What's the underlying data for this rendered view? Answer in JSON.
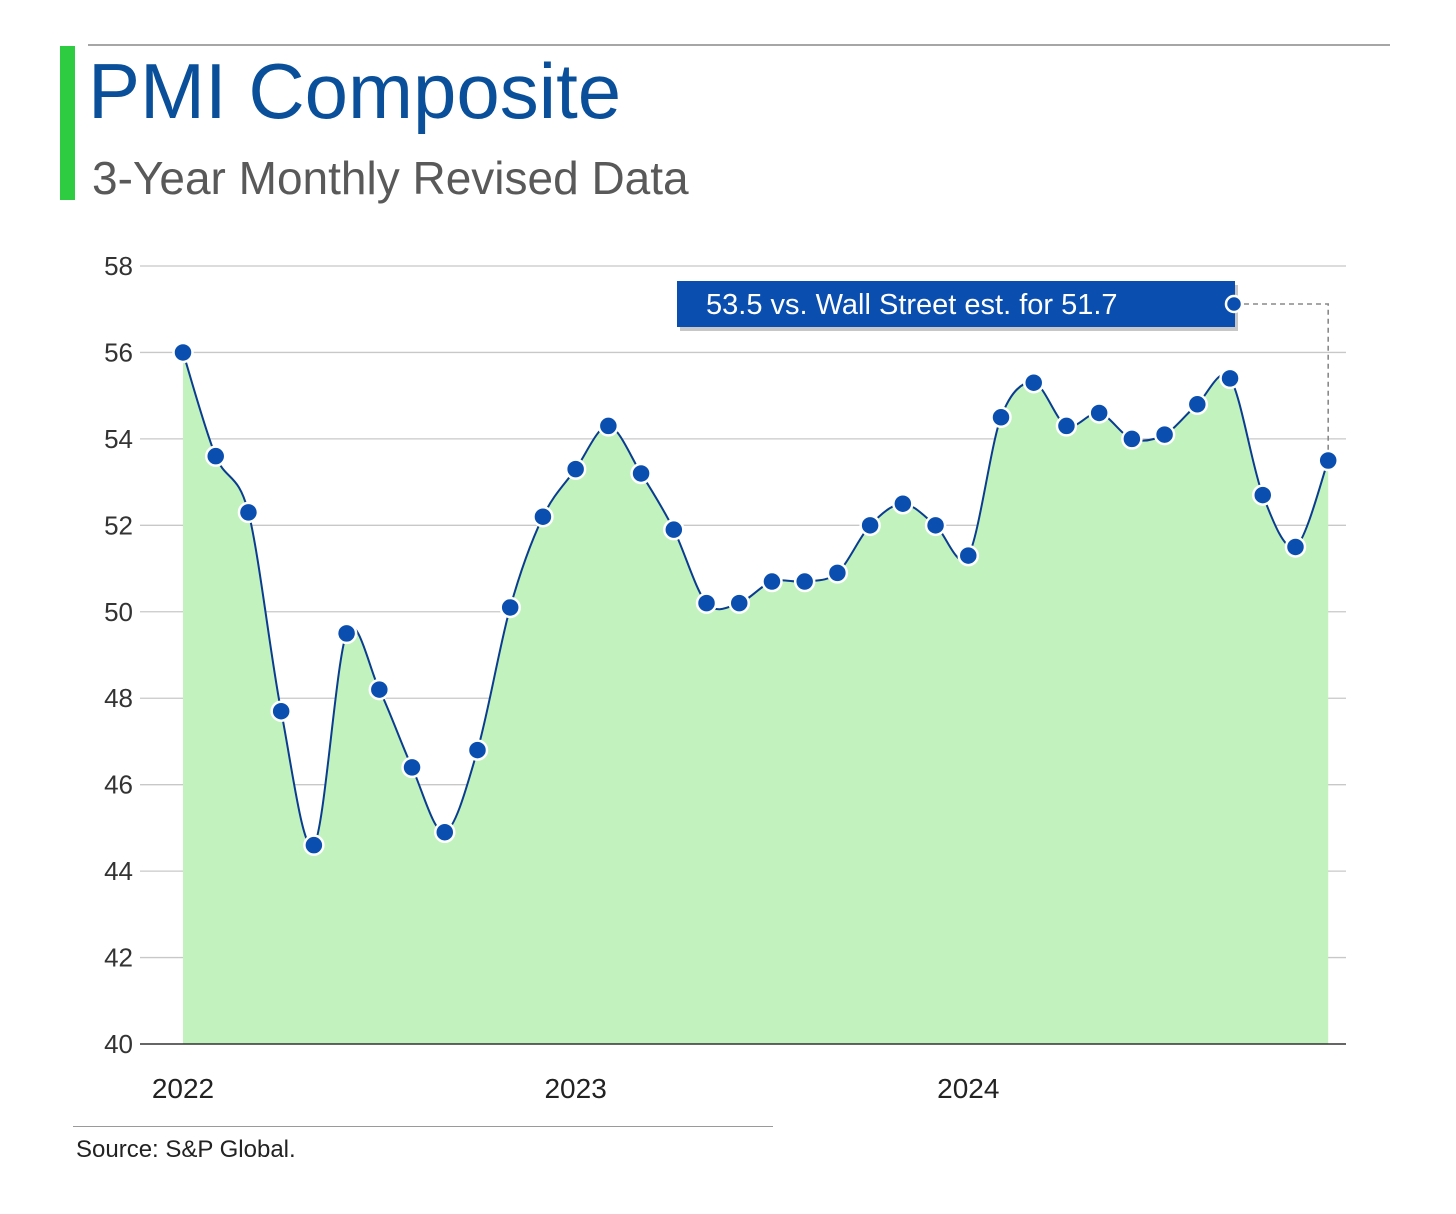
{
  "header": {
    "title": "PMI Composite",
    "subtitle": "3-Year Monthly Revised Data"
  },
  "colors": {
    "title": "#0a4f9a",
    "accent_bar": "#2ecc40",
    "line": "#0a3d8f",
    "marker": "#0a4fb0",
    "area_fill": "#c2f2bd",
    "callout_bg": "#0a4fb0"
  },
  "chart_data": {
    "type": "area",
    "title": "PMI Composite",
    "subtitle": "3-Year Monthly Revised Data",
    "xlabel": "",
    "ylabel": "",
    "ylim": [
      40,
      58
    ],
    "yticks": [
      40,
      42,
      44,
      46,
      48,
      50,
      52,
      54,
      56,
      58
    ],
    "year_labels": [
      "2022",
      "2023",
      "2024"
    ],
    "year_label_index": [
      0,
      12,
      24
    ],
    "grid": true,
    "legend": "none",
    "series": [
      {
        "values": [
          56.0,
          53.6,
          52.3,
          47.7,
          44.6,
          49.5,
          48.2,
          46.4,
          44.9,
          46.8,
          50.1,
          52.2,
          53.3,
          54.3,
          53.2,
          51.9,
          50.2,
          50.2,
          50.7,
          50.7,
          50.9,
          52.0,
          52.5,
          52.0,
          51.3,
          54.5,
          55.3,
          54.3,
          54.6,
          54.0,
          54.1,
          54.8,
          55.4,
          52.7,
          51.5,
          53.5
        ]
      }
    ],
    "annotation": {
      "text": "53.5 vs. Wall Street est. for 51.7",
      "point_index": 35
    }
  },
  "footer": {
    "source": "Source: S&P Global."
  }
}
